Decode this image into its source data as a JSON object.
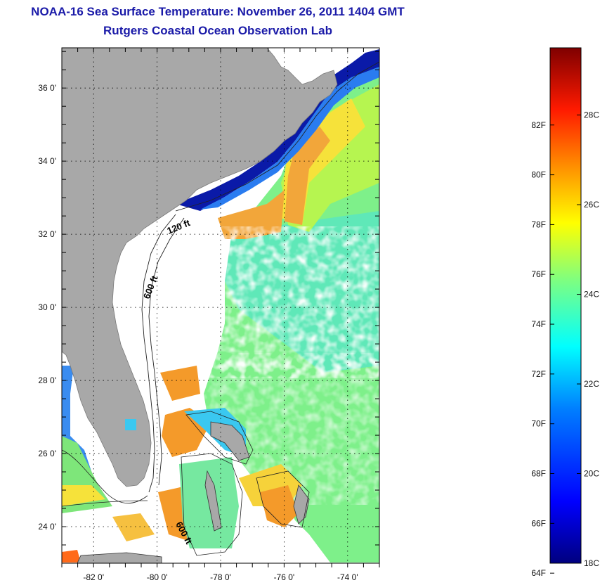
{
  "header": {
    "title": "NOAA-16 Sea Surface Temperature:  November 26, 2011 1404 GMT",
    "subtitle": "Rutgers Coastal Ocean Observation Lab"
  },
  "map": {
    "lat_ticks": [
      {
        "value": 36,
        "label": "36 0'"
      },
      {
        "value": 34,
        "label": "34 0'"
      },
      {
        "value": 32,
        "label": "32 0'"
      },
      {
        "value": 30,
        "label": "30 0'"
      },
      {
        "value": 28,
        "label": "28 0'"
      },
      {
        "value": 26,
        "label": "26 0'"
      },
      {
        "value": 24,
        "label": "24 0'"
      }
    ],
    "lon_ticks": [
      {
        "value": -82,
        "label": "-82 0'"
      },
      {
        "value": -80,
        "label": "-80 0'"
      },
      {
        "value": -78,
        "label": "-78 0'"
      },
      {
        "value": -76,
        "label": "-76 0'"
      },
      {
        "value": -74,
        "label": "-74 0'"
      }
    ],
    "lat_range": [
      23.0,
      37.1
    ],
    "lon_range": [
      -83.0,
      -73.0
    ],
    "land_color": "#a8a8a8",
    "cloud_color": "#ffffff",
    "contour_labels": [
      {
        "text": "120 ft"
      },
      {
        "text": "600 ft"
      },
      {
        "text": "600 ft"
      }
    ]
  },
  "colorbar": {
    "range_c": [
      18,
      29.5
    ],
    "colors": [
      "#00007f",
      "#0000ff",
      "#007fff",
      "#00ffff",
      "#7fff7f",
      "#ffff00",
      "#ff7f00",
      "#ff0000",
      "#7f0000"
    ],
    "fahrenheit_ticks": [
      "64F",
      "66F",
      "68F",
      "70F",
      "72F",
      "74F",
      "76F",
      "78F",
      "80F",
      "82F"
    ],
    "celsius_ticks": [
      "18C",
      "20C",
      "22C",
      "24C",
      "26C",
      "28C"
    ]
  }
}
